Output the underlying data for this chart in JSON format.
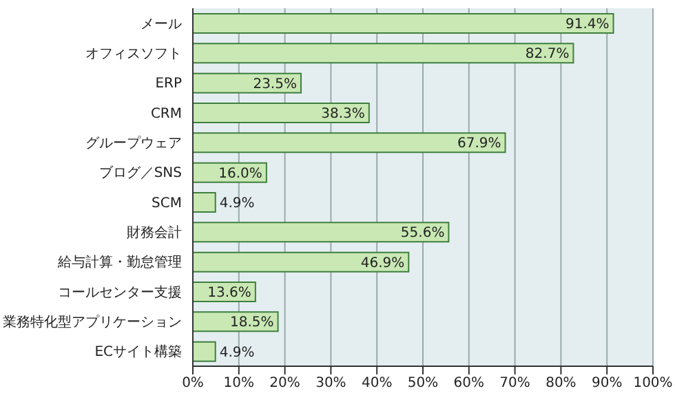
{
  "chart_data": {
    "type": "bar",
    "orientation": "horizontal",
    "categories": [
      "メール",
      "オフィスソフト",
      "ERP",
      "CRM",
      "グループウェア",
      "ブログ／SNS",
      "SCM",
      "財務会計",
      "給与計算・勤怠管理",
      "コールセンター支援",
      "業務特化型アプリケーション",
      "ECサイト構築"
    ],
    "values": [
      91.4,
      82.7,
      23.5,
      38.3,
      67.9,
      16.0,
      4.9,
      55.6,
      46.9,
      13.6,
      18.5,
      4.9
    ],
    "value_labels": [
      "91.4%",
      "82.7%",
      "23.5%",
      "38.3%",
      "67.9%",
      "16.0%",
      "4.9%",
      "55.6%",
      "46.9%",
      "13.6%",
      "18.5%",
      "4.9%"
    ],
    "color": "#c9e8b4",
    "xlim": [
      0,
      100
    ],
    "xticks": [
      {
        "value": 0,
        "label": "0%"
      },
      {
        "value": 10,
        "label": "10%"
      },
      {
        "value": 20,
        "label": "20%"
      },
      {
        "value": 30,
        "label": "30%"
      },
      {
        "value": 40,
        "label": "40%"
      },
      {
        "value": 50,
        "label": "50%"
      },
      {
        "value": 60,
        "label": "60%"
      },
      {
        "value": 70,
        "label": "70%"
      },
      {
        "value": 80,
        "label": "80%"
      },
      {
        "value": 90,
        "label": "90%"
      },
      {
        "value": 100,
        "label": "100%"
      }
    ],
    "grid": "x"
  }
}
